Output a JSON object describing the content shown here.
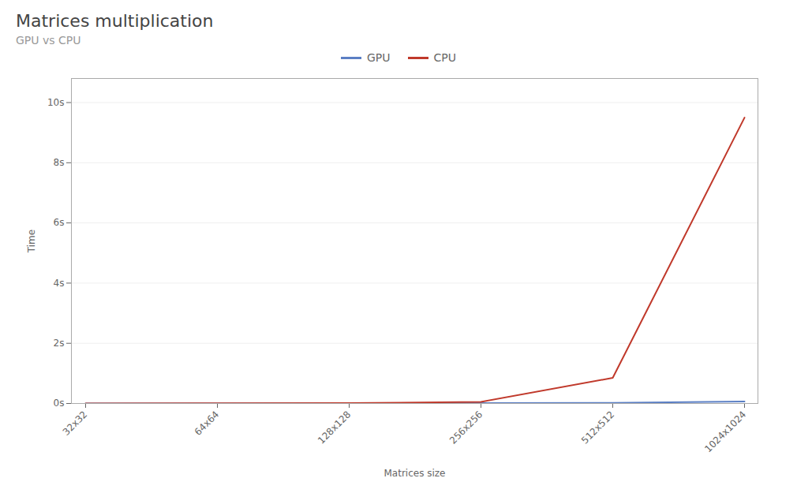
{
  "chart_data": {
    "type": "line",
    "title": "Matrices multiplication",
    "subtitle": "GPU vs CPU",
    "xlabel": "Matrices size",
    "ylabel": "Time",
    "categories": [
      "32x32",
      "64x64",
      "128x128",
      "256x256",
      "512x512",
      "1024x1024"
    ],
    "series": [
      {
        "name": "GPU",
        "color": "#5b7fc4",
        "values": [
          0.002,
          0.003,
          0.005,
          0.012,
          0.02,
          0.065
        ]
      },
      {
        "name": "CPU",
        "color": "#c0392b",
        "values": [
          0.003,
          0.005,
          0.012,
          0.055,
          0.85,
          9.5
        ]
      }
    ],
    "ylim": [
      0,
      10.8
    ],
    "yticks": [
      {
        "value": 0,
        "label": "0s"
      },
      {
        "value": 2,
        "label": "2s"
      },
      {
        "value": 4,
        "label": "4s"
      },
      {
        "value": 6,
        "label": "6s"
      },
      {
        "value": 8,
        "label": "8s"
      },
      {
        "value": 10,
        "label": "10s"
      }
    ],
    "grid": true,
    "legend": "top"
  }
}
